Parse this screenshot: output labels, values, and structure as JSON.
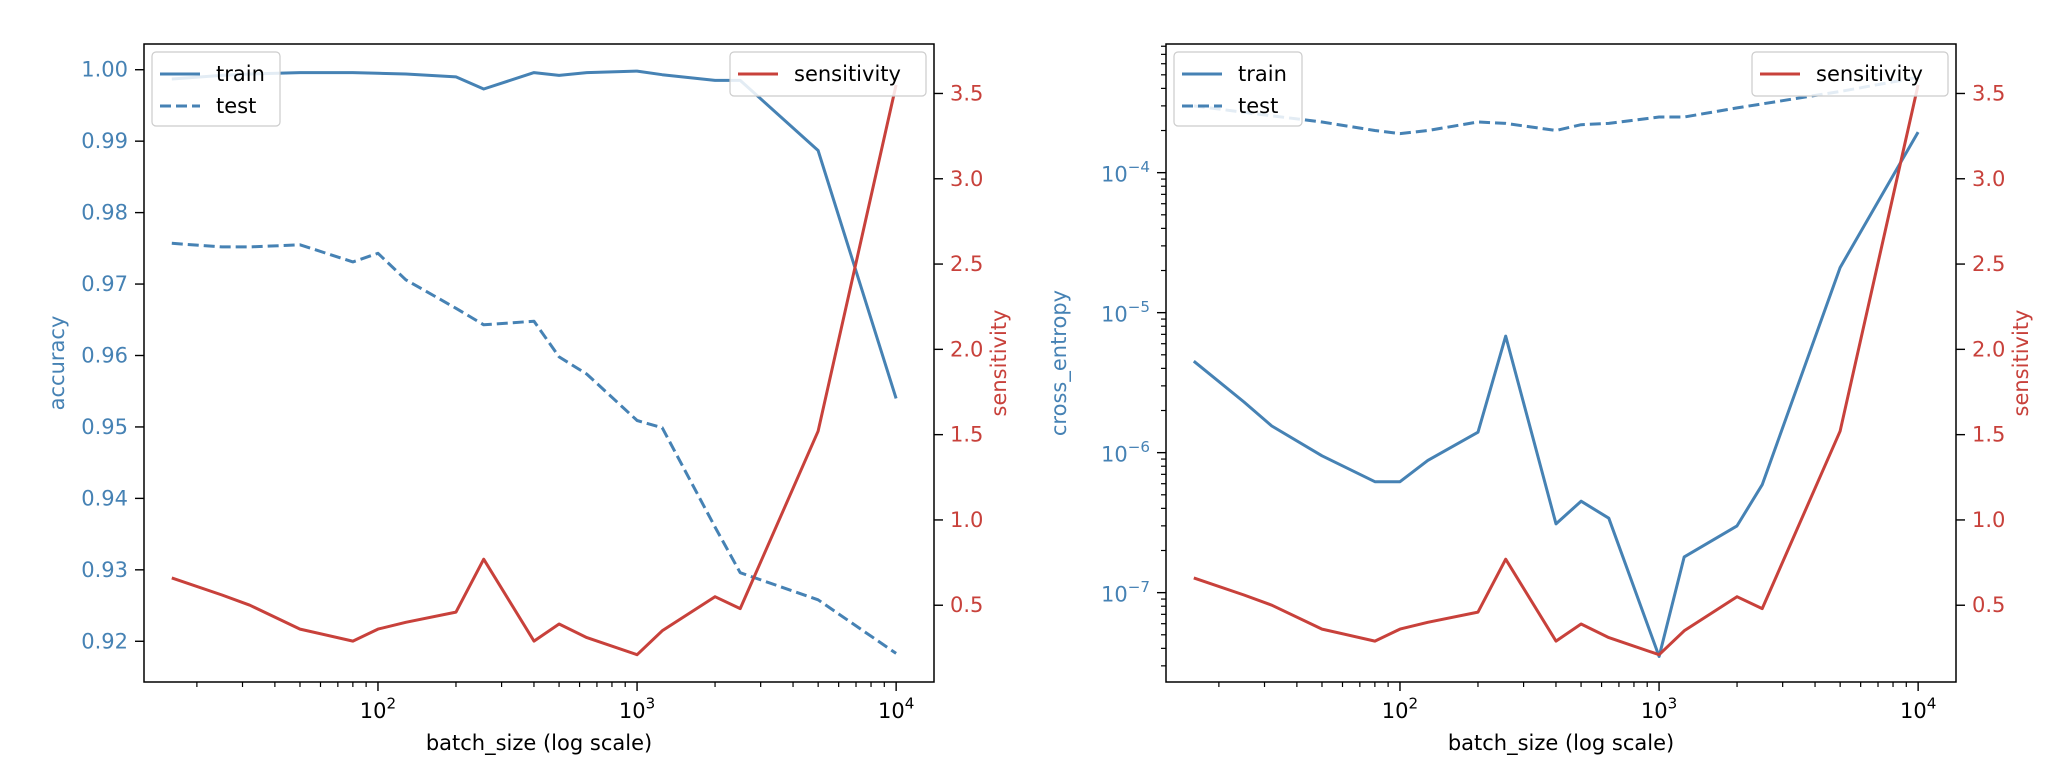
{
  "colors": {
    "left_axis": "#4682b4",
    "right_axis": "#c8413b",
    "frame": "#000000"
  },
  "chart_data": [
    {
      "type": "line",
      "xlabel": "batch_size (log scale)",
      "ylabel": "accuracy",
      "y2label": "sensitivity",
      "xscale": "log",
      "xlim": [
        12.5,
        14000
      ],
      "ylim": [
        0.9143,
        1.0036
      ],
      "y2lim": [
        0.05,
        3.79
      ],
      "xticks": [
        100,
        1000,
        10000
      ],
      "xtick_labels": [
        {
          "base": "10",
          "exp": "2"
        },
        {
          "base": "10",
          "exp": "3"
        },
        {
          "base": "10",
          "exp": "4"
        }
      ],
      "yticks": [
        0.92,
        0.93,
        0.94,
        0.95,
        0.96,
        0.97,
        0.98,
        0.99,
        1.0
      ],
      "ytick_labels": [
        "0.92",
        "0.93",
        "0.94",
        "0.95",
        "0.96",
        "0.97",
        "0.98",
        "0.99",
        "1.00"
      ],
      "y2ticks": [
        0.5,
        1.0,
        1.5,
        2.0,
        2.5,
        3.0,
        3.5
      ],
      "y2tick_labels": [
        "0.5",
        "1.0",
        "1.5",
        "2.0",
        "2.5",
        "3.0",
        "3.5"
      ],
      "legend_left": {
        "placement": "upper-left",
        "entries": [
          "train",
          "test"
        ]
      },
      "legend_right": {
        "placement": "upper-right",
        "entries": [
          "sensitivity"
        ]
      },
      "x": [
        16,
        25,
        32,
        50,
        80,
        100,
        128,
        200,
        256,
        400,
        500,
        640,
        1000,
        1250,
        2000,
        2500,
        5000,
        10000
      ],
      "series": [
        {
          "name": "train",
          "axis": "left",
          "style": "solid",
          "values": [
            0.9987,
            0.9992,
            0.9994,
            0.9996,
            0.9996,
            0.9995,
            0.9994,
            0.999,
            0.9973,
            0.9996,
            0.9992,
            0.9996,
            0.9998,
            0.9993,
            0.9985,
            0.9985,
            0.9887,
            0.954
          ]
        },
        {
          "name": "test",
          "axis": "left",
          "style": "dashed",
          "values": [
            0.9757,
            0.9752,
            0.9752,
            0.9755,
            0.9731,
            0.9743,
            0.9706,
            0.9666,
            0.9643,
            0.9648,
            0.9598,
            0.9574,
            0.9509,
            0.9499,
            0.936,
            0.9296,
            0.9258,
            0.9183
          ]
        },
        {
          "name": "sensitivity",
          "axis": "right",
          "style": "solid",
          "values": [
            0.66,
            0.56,
            0.5,
            0.36,
            0.29,
            0.36,
            0.4,
            0.46,
            0.77,
            0.29,
            0.39,
            0.31,
            0.21,
            0.35,
            0.55,
            0.48,
            1.52,
            3.55
          ]
        }
      ]
    },
    {
      "type": "line",
      "xlabel": "batch_size (log scale)",
      "ylabel": "cross_entropy",
      "y2label": "sensitivity",
      "xscale": "log",
      "yscale": "log",
      "xlim": [
        12.5,
        14000
      ],
      "ylim": [
        2.3e-08,
        0.00083
      ],
      "y2lim": [
        0.05,
        3.79
      ],
      "xticks": [
        100,
        1000,
        10000
      ],
      "xtick_labels": [
        {
          "base": "10",
          "exp": "2"
        },
        {
          "base": "10",
          "exp": "3"
        },
        {
          "base": "10",
          "exp": "4"
        }
      ],
      "yticks": [
        1e-07,
        1e-06,
        1e-05,
        0.0001
      ],
      "ytick_labels": [
        {
          "base": "10",
          "exp": "−7"
        },
        {
          "base": "10",
          "exp": "−6"
        },
        {
          "base": "10",
          "exp": "−5"
        },
        {
          "base": "10",
          "exp": "−4"
        }
      ],
      "y2ticks": [
        0.5,
        1.0,
        1.5,
        2.0,
        2.5,
        3.0,
        3.5
      ],
      "y2tick_labels": [
        "0.5",
        "1.0",
        "1.5",
        "2.0",
        "2.5",
        "3.0",
        "3.5"
      ],
      "legend_left": {
        "placement": "upper-left",
        "entries": [
          "train",
          "test"
        ]
      },
      "legend_right": {
        "placement": "upper-right",
        "entries": [
          "sensitivity"
        ]
      },
      "x": [
        16,
        25,
        32,
        50,
        80,
        100,
        128,
        200,
        256,
        400,
        500,
        640,
        1000,
        1250,
        2000,
        2500,
        5000,
        10000
      ],
      "series": [
        {
          "name": "train",
          "axis": "left",
          "style": "solid",
          "values": [
            4.5e-06,
            2.3e-06,
            1.55e-06,
            9.5e-07,
            6.2e-07,
            6.2e-07,
            8.8e-07,
            1.4e-06,
            6.8e-06,
            3.1e-07,
            4.5e-07,
            3.4e-07,
            3.5e-08,
            1.8e-07,
            3e-07,
            5.9e-07,
            2.1e-05,
            0.000195
          ]
        },
        {
          "name": "test",
          "axis": "left",
          "style": "dashed",
          "values": [
            0.0003,
            0.00027,
            0.000255,
            0.00023,
            0.0002,
            0.00019,
            0.0002,
            0.00023,
            0.000225,
            0.0002,
            0.00022,
            0.000225,
            0.00025,
            0.00025,
            0.00029,
            0.00031,
            0.00038,
            0.00048
          ]
        },
        {
          "name": "sensitivity",
          "axis": "right",
          "style": "solid",
          "values": [
            0.66,
            0.56,
            0.5,
            0.36,
            0.29,
            0.36,
            0.4,
            0.46,
            0.77,
            0.29,
            0.39,
            0.31,
            0.21,
            0.35,
            0.55,
            0.48,
            1.52,
            3.55
          ]
        }
      ]
    }
  ]
}
